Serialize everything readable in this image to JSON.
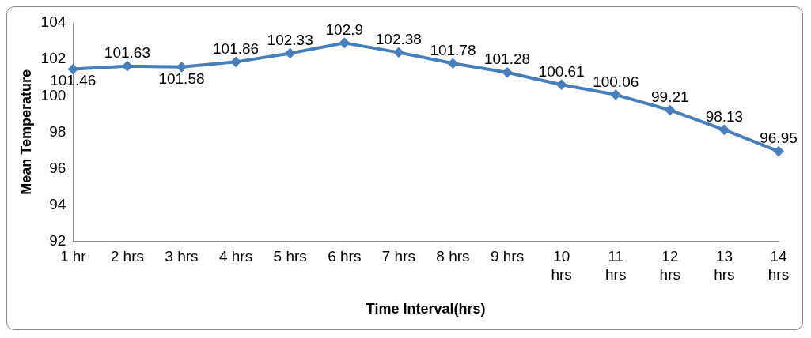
{
  "chart_data": {
    "type": "line",
    "xlabel": "Time Interval(hrs)",
    "ylabel": "Mean Temperature",
    "categories": [
      "1 hr",
      "2 hrs",
      "3 hrs",
      "4 hrs",
      "5 hrs",
      "6 hrs",
      "7 hrs",
      "8 hrs",
      "9 hrs",
      "10 hrs",
      "11 hrs",
      "12 hrs",
      "13 hrs",
      "14 hrs"
    ],
    "series": [
      {
        "color": "#4a7ebb",
        "values": [
          101.46,
          101.63,
          101.58,
          101.86,
          102.33,
          102.9,
          102.38,
          101.78,
          101.28,
          100.61,
          100.06,
          99.21,
          98.13,
          96.95
        ]
      }
    ],
    "ylim": [
      92,
      104
    ],
    "yticks": [
      92,
      94,
      96,
      98,
      100,
      102,
      104
    ],
    "grid": false,
    "legend": false,
    "marker": "diamond",
    "line_style": "solid",
    "data_labels": true
  }
}
